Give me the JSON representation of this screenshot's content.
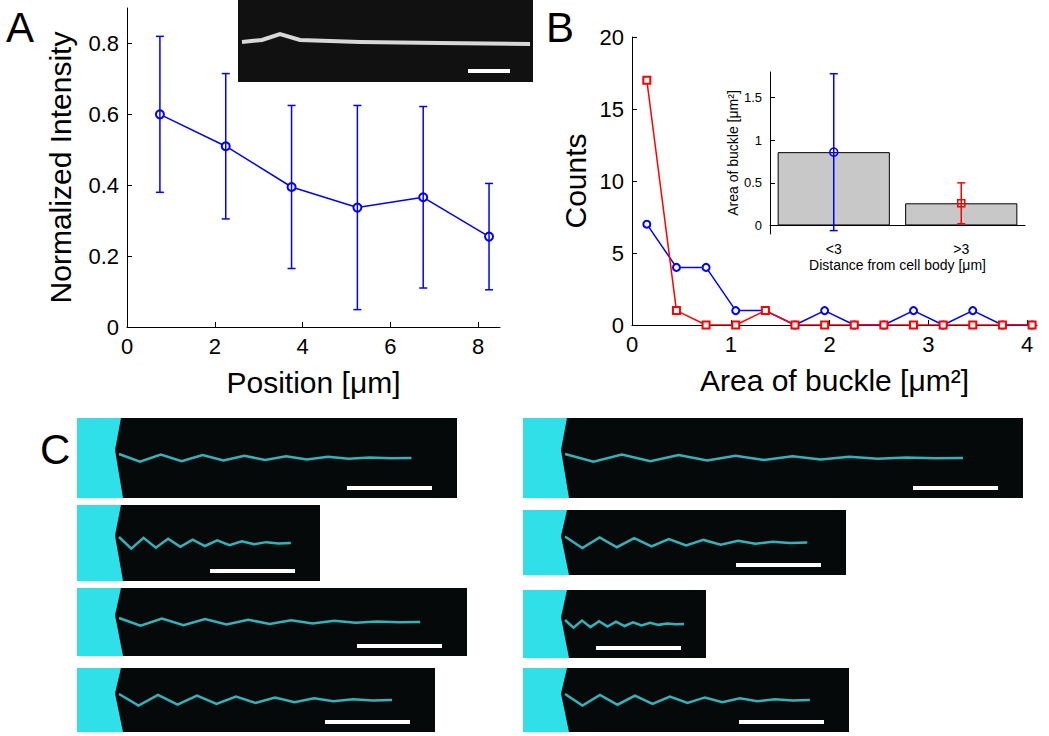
{
  "chart_data": [
    {
      "type": "line",
      "title": "A",
      "x": [
        0.75,
        2.25,
        3.75,
        5.25,
        6.75,
        8.25
      ],
      "values": [
        0.6,
        0.51,
        0.395,
        0.337,
        0.366,
        0.255
      ],
      "error": [
        0.22,
        0.205,
        0.23,
        0.288,
        0.256,
        0.15
      ],
      "color": "#0000ff",
      "marker": "circle",
      "xlabel": "Position [μm]",
      "ylabel": "Normalized Intensity",
      "xlim": [
        0,
        8.5
      ],
      "xticks": [
        0,
        2,
        4,
        6,
        8
      ],
      "ylim": [
        0,
        0.9
      ],
      "yticks": [
        0,
        0.2,
        0.4,
        0.6,
        0.8
      ],
      "grid": false
    },
    {
      "type": "line",
      "title": "B",
      "x": [
        0.15,
        0.45,
        0.75,
        1.05,
        1.35,
        1.65,
        1.95,
        2.25,
        2.55,
        2.85,
        3.15,
        3.45,
        3.75,
        4.05
      ],
      "series": [
        {
          "color": "#0000ff",
          "marker": "circle",
          "values": [
            7,
            4,
            4,
            1,
            1,
            0,
            1,
            0,
            0,
            1,
            0,
            1,
            0,
            0
          ]
        },
        {
          "color": "#ff0000",
          "marker": "square",
          "values": [
            17,
            1,
            0,
            0,
            1,
            0,
            0,
            0,
            0,
            0,
            0,
            0,
            0,
            0
          ]
        }
      ],
      "xlabel": "Area of buckle [μm²]",
      "ylabel": "Counts",
      "xlim": [
        0,
        4.1
      ],
      "xticks": [
        0,
        1,
        2,
        3,
        4
      ],
      "ylim": [
        0,
        20
      ],
      "yticks": [
        0,
        5,
        10,
        15,
        20
      ],
      "grid": false
    },
    {
      "type": "bar",
      "categories": [
        "<3",
        ">3"
      ],
      "values": [
        0.86,
        0.26
      ],
      "error": [
        0.92,
        0.24
      ],
      "color": "#c8c8c8",
      "xlabel": "Distance from cell body [μm]",
      "ylabel": "Area of buckle [μm²]",
      "ylim": [
        -0.1,
        1.8
      ],
      "yticks": [
        0,
        0.5,
        1,
        1.5
      ],
      "grid": false
    }
  ],
  "figure_panels": [
    {
      "label": "C"
    }
  ]
}
